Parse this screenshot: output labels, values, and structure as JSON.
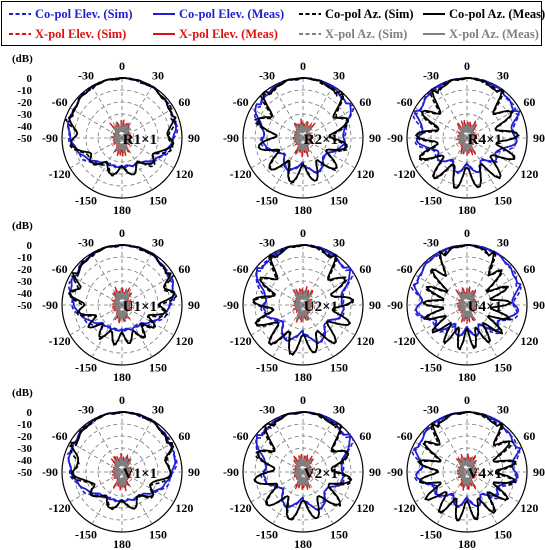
{
  "legend": [
    {
      "label": "Co-pol Elev. (Sim)",
      "color": "#1f1fd6",
      "dash": "dashed"
    },
    {
      "label": "Co-pol Elev. (Meas)",
      "color": "#1f1fd6",
      "dash": "solid"
    },
    {
      "label": "Co-pol Az. (Sim)",
      "color": "#000000",
      "dash": "dashed"
    },
    {
      "label": "Co-pol Az. (Meas)",
      "color": "#000000",
      "dash": "solid"
    },
    {
      "label": "X-pol Elev. (Sim)",
      "color": "#e01010",
      "dash": "dashed"
    },
    {
      "label": "X-pol Elev. (Meas)",
      "color": "#e01010",
      "dash": "solid"
    },
    {
      "label": "X-pol Az. (Sim)",
      "color": "#808080",
      "dash": "dashed"
    },
    {
      "label": "X-pol Az. (Meas)",
      "color": "#808080",
      "dash": "solid"
    }
  ],
  "chart_data": {
    "type": "polar",
    "unit_label": "(dB)",
    "radial_ticks": [
      0,
      -10,
      -20,
      -30,
      -40,
      -50
    ],
    "radial_range": [
      -50,
      0
    ],
    "angle_ticks": [
      "0",
      "30",
      "60",
      "90",
      "120",
      "150",
      "180",
      "-150",
      "-120",
      "-90",
      "-60",
      "-30"
    ],
    "angle_tick_values": [
      0,
      30,
      60,
      90,
      120,
      150,
      180,
      -150,
      -120,
      -90,
      -60,
      -30
    ],
    "grid": true,
    "panels": [
      {
        "label": "R1×1",
        "profiles": {
          "elev": {
            "half_bw": 125,
            "min_db": -32,
            "lobes": 0,
            "lobe_amp": 2,
            "bias": 0
          },
          "az": {
            "half_bw": 120,
            "min_db": -30,
            "lobes": 3,
            "lobe_amp": 4,
            "bias": 0
          }
        }
      },
      {
        "label": "R2×1",
        "profiles": {
          "elev": {
            "half_bw": 95,
            "min_db": -32,
            "lobes": 2,
            "lobe_amp": 4,
            "bias": 20
          },
          "az": {
            "half_bw": 70,
            "min_db": -28,
            "lobes": 4,
            "lobe_amp": 8,
            "bias": -10
          }
        }
      },
      {
        "label": "R4×1",
        "profiles": {
          "elev": {
            "half_bw": 110,
            "min_db": -32,
            "lobes": 3,
            "lobe_amp": 4,
            "bias": 0
          },
          "az": {
            "half_bw": 60,
            "min_db": -25,
            "lobes": 5,
            "lobe_amp": 10,
            "bias": 0
          }
        }
      },
      {
        "label": "U1×1",
        "profiles": {
          "elev": {
            "half_bw": 110,
            "min_db": -35,
            "lobes": 0,
            "lobe_amp": 2,
            "bias": 0
          },
          "az": {
            "half_bw": 100,
            "min_db": -30,
            "lobes": 5,
            "lobe_amp": 5,
            "bias": 0
          }
        }
      },
      {
        "label": "U2×1",
        "profiles": {
          "elev": {
            "half_bw": 90,
            "min_db": -30,
            "lobes": 2,
            "lobe_amp": 5,
            "bias": 20
          },
          "az": {
            "half_bw": 55,
            "min_db": -25,
            "lobes": 5,
            "lobe_amp": 9,
            "bias": -10
          }
        }
      },
      {
        "label": "U4×1",
        "profiles": {
          "elev": {
            "half_bw": 120,
            "min_db": -35,
            "lobes": 3,
            "lobe_amp": 4,
            "bias": 0
          },
          "az": {
            "half_bw": 45,
            "min_db": -30,
            "lobes": 7,
            "lobe_amp": 9,
            "bias": 0
          }
        }
      },
      {
        "label": "V1×1",
        "profiles": {
          "elev": {
            "half_bw": 120,
            "min_db": -32,
            "lobes": 0,
            "lobe_amp": 2,
            "bias": 0
          },
          "az": {
            "half_bw": 105,
            "min_db": -30,
            "lobes": 3,
            "lobe_amp": 4,
            "bias": 0
          }
        }
      },
      {
        "label": "V2×1",
        "profiles": {
          "elev": {
            "half_bw": 90,
            "min_db": -30,
            "lobes": 2,
            "lobe_amp": 5,
            "bias": 20
          },
          "az": {
            "half_bw": 65,
            "min_db": -26,
            "lobes": 4,
            "lobe_amp": 9,
            "bias": -10
          }
        }
      },
      {
        "label": "V4×1",
        "profiles": {
          "elev": {
            "half_bw": 115,
            "min_db": -32,
            "lobes": 3,
            "lobe_amp": 4,
            "bias": 0
          },
          "az": {
            "half_bw": 60,
            "min_db": -26,
            "lobes": 6,
            "lobe_amp": 9,
            "bias": 0
          }
        }
      }
    ]
  }
}
